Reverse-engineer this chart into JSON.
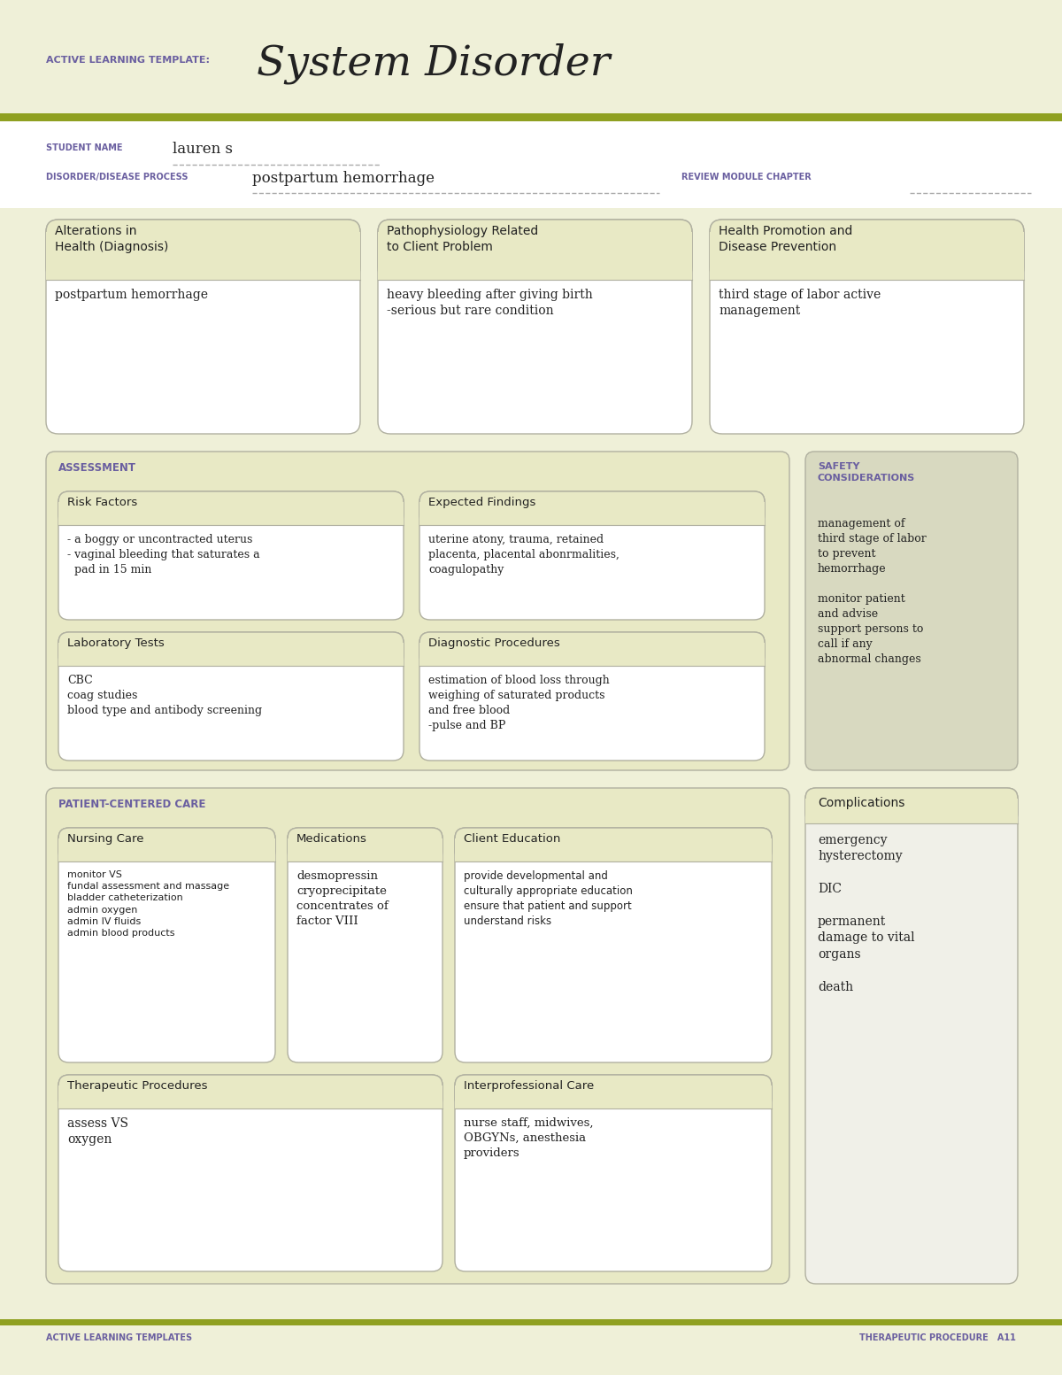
{
  "fig_w": 12.0,
  "fig_h": 15.53,
  "dpi": 100,
  "bg_cream": "#eff0d8",
  "white": "#ffffff",
  "box_header_bg": "#e8e9c5",
  "section_bg": "#e8e9c5",
  "safety_bg": "#d8d9c0",
  "border_color": "#b0b0a0",
  "olive_line": "#8fa020",
  "purple_label": "#6a5fa0",
  "dark_text": "#222222",
  "comp_bg": "#f0f0e8",
  "title_label": "ACTIVE LEARNING TEMPLATE:",
  "title_main": "System Disorder",
  "student_label": "STUDENT NAME",
  "student_name": "lauren s",
  "disorder_label": "DISORDER/DISEASE PROCESS",
  "disorder_name": "postpartum hemorrhage",
  "review_label": "REVIEW MODULE CHAPTER",
  "box1_title": "Alterations in\nHealth (Diagnosis)",
  "box1_content": "postpartum hemorrhage",
  "box2_title": "Pathophysiology Related\nto Client Problem",
  "box2_content": "heavy bleeding after giving birth\n-serious but rare condition",
  "box3_title": "Health Promotion and\nDisease Prevention",
  "box3_content": "third stage of labor active\nmanagement",
  "assessment_label": "ASSESSMENT",
  "safety_label": "SAFETY\nCONSIDERATIONS",
  "risk_title": "Risk Factors",
  "risk_content": "- a boggy or uncontracted uterus\n- vaginal bleeding that saturates a\n  pad in 15 min",
  "findings_title": "Expected Findings",
  "findings_content": "uterine atony, trauma, retained\nplacenta, placental abonrmalities,\ncoagulopathy",
  "safety_content": "management of\nthird stage of labor\nto prevent\nhemorrhage\n\nmonitor patient\nand advise\nsupport persons to\ncall if any\nabnormal changes",
  "lab_title": "Laboratory Tests",
  "lab_content": "CBC\ncoag studies\nblood type and antibody screening",
  "diag_title": "Diagnostic Procedures",
  "diag_content": "estimation of blood loss through\nweighing of saturated products\nand free blood\n-pulse and BP",
  "pcc_label": "PATIENT-CENTERED CARE",
  "nursing_title": "Nursing Care",
  "nursing_content": "monitor VS\nfundal assessment and massage\nbladder catheterization\nadmin oxygen\nadmin IV fluids\nadmin blood products",
  "med_title": "Medications",
  "med_content": "desmopressin\ncryoprecipitate\nconcentrates of\nfactor VIII",
  "edu_title": "Client Education",
  "edu_content": "provide developmental and\nculturally appropriate education\nensure that patient and support\nunderstand risks",
  "complications_title": "Complications",
  "complications_content": "emergency\nhysterectomy\n\nDIC\n\npermanent\ndamage to vital\norgans\n\ndeath",
  "therapy_title": "Therapeutic Procedures",
  "therapy_content": "assess VS\noxygen",
  "interpro_title": "Interprofessional Care",
  "interpro_content": "nurse staff, midwives,\nOBGYNs, anesthesia\nproviders",
  "footer_left": "ACTIVE LEARNING TEMPLATES",
  "footer_right": "THERAPEUTIC PROCEDURE   A11"
}
